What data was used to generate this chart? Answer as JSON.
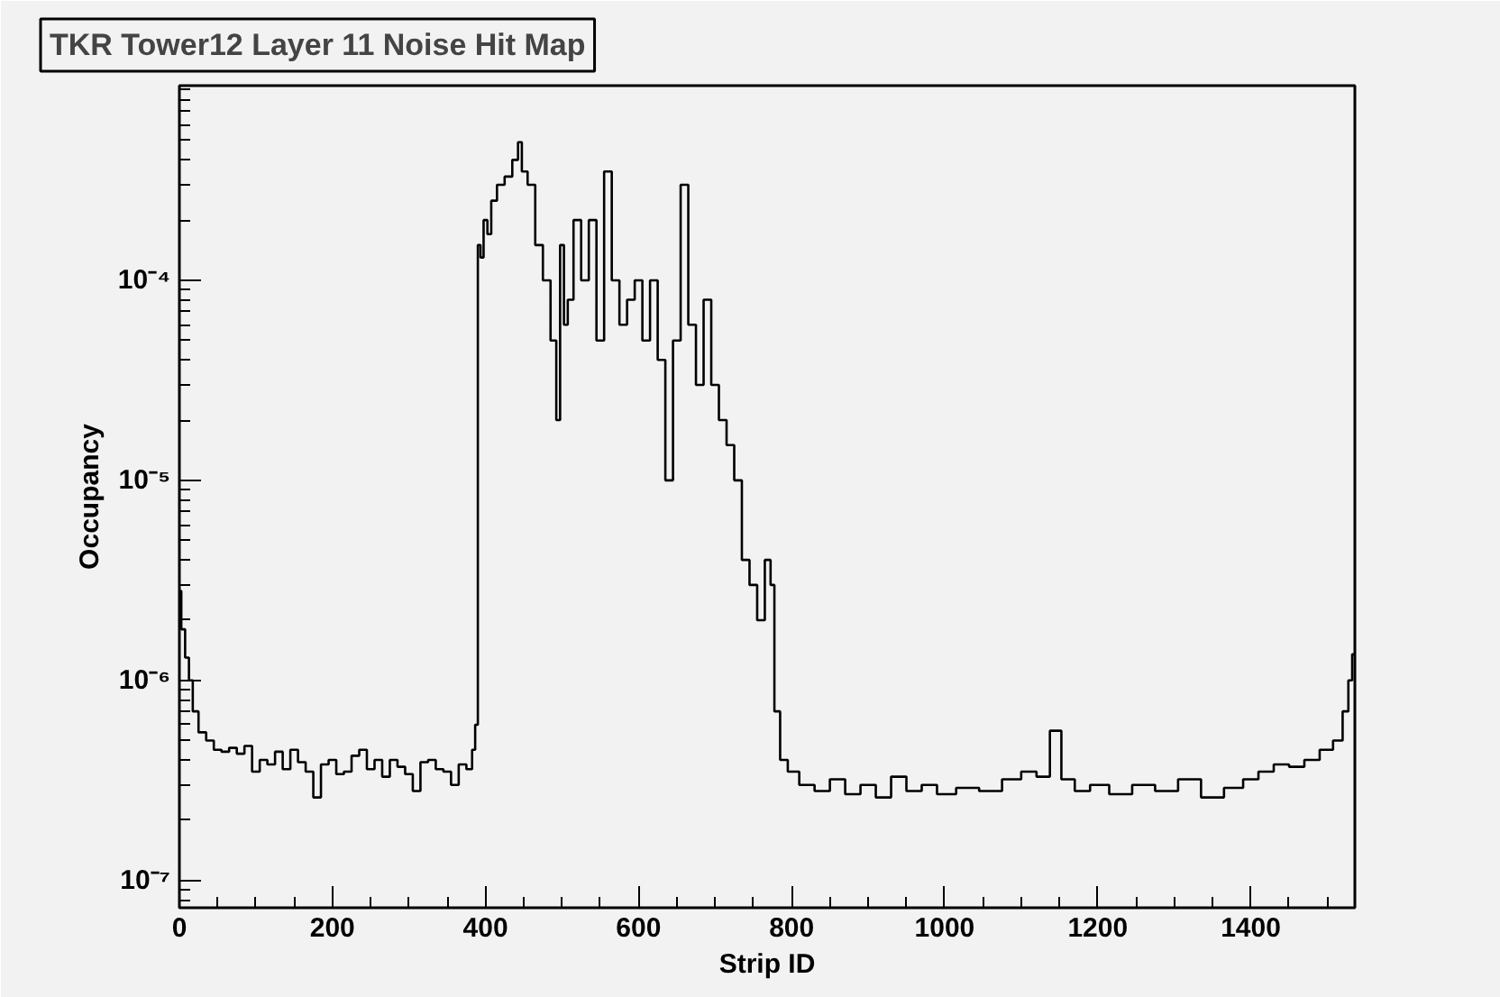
{
  "chart_data": {
    "type": "step",
    "title": "TKR Tower12 Layer 11 Noise Hit Map",
    "xlabel": "Strip ID",
    "ylabel": "Occupancy",
    "log": "y",
    "grid": false,
    "marker": "none",
    "line_style": "solid",
    "xlim": [
      0,
      1536
    ],
    "xticks": [
      0,
      200,
      400,
      600,
      800,
      1000,
      1200,
      1400
    ],
    "ylim": [
      7.3e-08,
      0.00094
    ],
    "yticks": [
      {
        "value": 1e-07,
        "label": "10⁻⁷"
      },
      {
        "value": 1e-06,
        "label": "10⁻⁶"
      },
      {
        "value": 1e-05,
        "label": "10⁻⁵"
      },
      {
        "value": 0.0001,
        "label": "10⁻⁴"
      }
    ],
    "series": [
      {
        "color": "#000000",
        "x": [
          0,
          5,
          10,
          15,
          20,
          30,
          40,
          50,
          60,
          70,
          80,
          90,
          100,
          110,
          120,
          130,
          140,
          150,
          160,
          170,
          180,
          190,
          200,
          210,
          220,
          230,
          240,
          250,
          260,
          270,
          280,
          290,
          300,
          310,
          320,
          330,
          340,
          350,
          360,
          370,
          380,
          385,
          388,
          392,
          395,
          400,
          405,
          410,
          420,
          430,
          440,
          445,
          450,
          460,
          470,
          480,
          490,
          495,
          500,
          505,
          510,
          520,
          530,
          540,
          550,
          560,
          570,
          580,
          590,
          600,
          610,
          620,
          630,
          640,
          650,
          660,
          670,
          680,
          690,
          700,
          710,
          720,
          730,
          740,
          750,
          760,
          770,
          775,
          780,
          790,
          800,
          820,
          840,
          860,
          880,
          900,
          920,
          940,
          960,
          980,
          1000,
          1030,
          1060,
          1090,
          1110,
          1130,
          1145,
          1160,
          1180,
          1200,
          1230,
          1260,
          1290,
          1320,
          1350,
          1380,
          1400,
          1420,
          1440,
          1460,
          1480,
          1500,
          1515,
          1525,
          1530,
          1535
        ],
        "values": [
          2.8e-06,
          1.8e-06,
          1.3e-06,
          1e-06,
          7e-07,
          5.5e-07,
          5e-07,
          4.5e-07,
          4.4e-07,
          4.6e-07,
          4.3e-07,
          4.7e-07,
          3.5e-07,
          4e-07,
          3.8e-07,
          4.4e-07,
          3.6e-07,
          4.5e-07,
          3.9e-07,
          3.5e-07,
          2.6e-07,
          3.8e-07,
          4e-07,
          3.4e-07,
          3.5e-07,
          4.2e-07,
          4.5e-07,
          3.6e-07,
          4e-07,
          3.3e-07,
          4e-07,
          3.7e-07,
          3.4e-07,
          2.8e-07,
          3.9e-07,
          4e-07,
          3.6e-07,
          3.5e-07,
          3e-07,
          3.8e-07,
          3.6e-07,
          4.5e-07,
          6e-07,
          0.00015,
          0.00013,
          0.0002,
          0.00017,
          0.00025,
          0.0003,
          0.00033,
          0.0004,
          0.00049,
          0.00035,
          0.0003,
          0.00015,
          0.0001,
          5e-05,
          2e-05,
          0.00015,
          6e-05,
          8e-05,
          0.0002,
          0.0001,
          0.0002,
          5e-05,
          0.00035,
          0.0001,
          6e-05,
          8e-05,
          0.0001,
          5e-05,
          0.0001,
          4e-05,
          1e-05,
          5e-05,
          0.0003,
          6e-05,
          3e-05,
          8e-05,
          3e-05,
          2e-05,
          1.5e-05,
          1e-05,
          4e-06,
          3e-06,
          2e-06,
          4e-06,
          3e-06,
          7e-07,
          4e-07,
          3.5e-07,
          3e-07,
          2.8e-07,
          3.2e-07,
          2.7e-07,
          3e-07,
          2.6e-07,
          3.3e-07,
          2.8e-07,
          3e-07,
          2.7e-07,
          2.9e-07,
          2.8e-07,
          3.2e-07,
          3.5e-07,
          3.3e-07,
          5.6e-07,
          3.2e-07,
          2.8e-07,
          3e-07,
          2.7e-07,
          3e-07,
          2.8e-07,
          3.2e-07,
          2.6e-07,
          2.9e-07,
          3.2e-07,
          3.5e-07,
          3.8e-07,
          3.7e-07,
          4e-07,
          4.5e-07,
          5e-07,
          7e-07,
          1e-06,
          1.35e-06
        ]
      }
    ]
  }
}
